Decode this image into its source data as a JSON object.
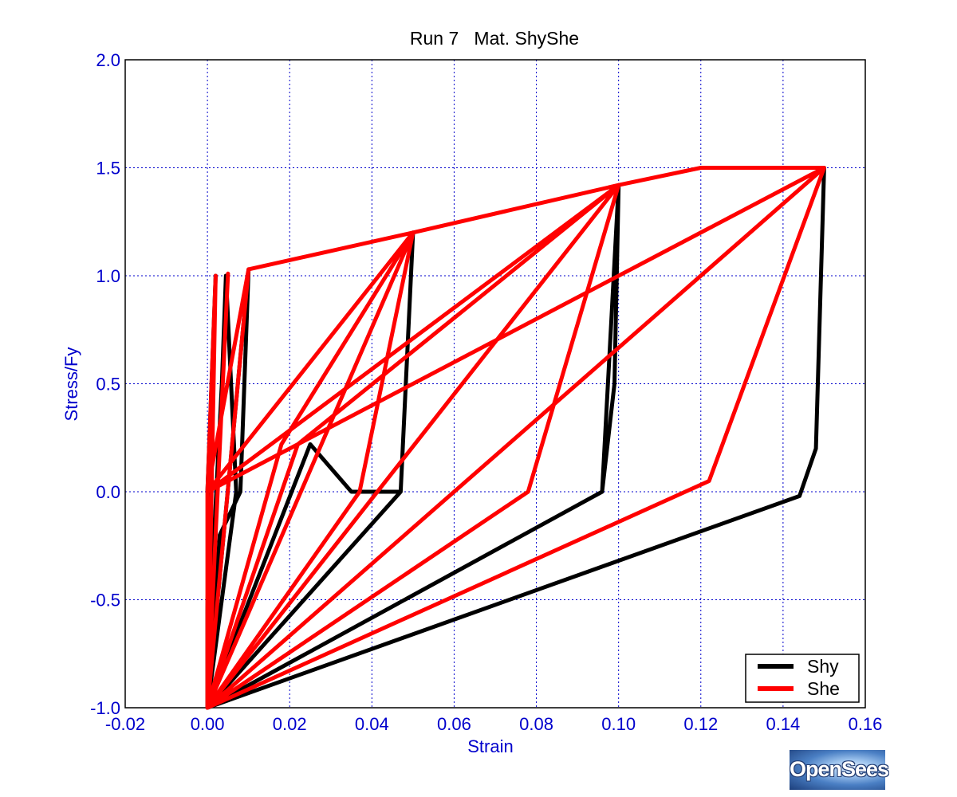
{
  "chart_data": {
    "type": "line",
    "title": "Run 7   Mat. ShyShe",
    "xlabel": "Strain",
    "ylabel": "Stress/Fy",
    "xlim": [
      -0.02,
      0.16
    ],
    "ylim": [
      -1.0,
      2.0
    ],
    "xticks": [
      "-0.02",
      "0.00",
      "0.02",
      "0.04",
      "0.06",
      "0.08",
      "0.10",
      "0.12",
      "0.14",
      "0.16"
    ],
    "yticks": [
      "-1.0",
      "-0.5",
      "0.0",
      "0.5",
      "1.0",
      "1.5",
      "2.0"
    ],
    "grid": true,
    "legend_position": "bottom-right",
    "series": [
      {
        "name": "Shy",
        "color": "#000000",
        "points": [
          [
            0.0,
            0.0
          ],
          [
            0.002,
            1.0
          ],
          [
            0.001,
            0.5
          ],
          [
            0.0,
            -0.55
          ],
          [
            0.0,
            -1.0
          ],
          [
            0.007,
            0.0
          ],
          [
            0.0045,
            1.0
          ],
          [
            0.0035,
            0.5
          ],
          [
            0.0,
            -0.8
          ],
          [
            0.0,
            -1.0
          ],
          [
            0.01,
            1.03
          ],
          [
            0.008,
            0.0
          ],
          [
            0.003,
            -0.2
          ],
          [
            0.0,
            -1.0
          ],
          [
            0.025,
            0.22
          ],
          [
            0.035,
            0.0
          ],
          [
            0.047,
            0.0
          ],
          [
            0.05,
            1.2
          ],
          [
            0.047,
            0.0
          ],
          [
            0.0,
            -1.0
          ],
          [
            0.096,
            0.0
          ],
          [
            0.099,
            0.5
          ],
          [
            0.1,
            1.42
          ],
          [
            0.096,
            0.0
          ],
          [
            0.0,
            -1.0
          ],
          [
            0.144,
            -0.02
          ],
          [
            0.148,
            0.2
          ],
          [
            0.15,
            1.5
          ],
          [
            0.148,
            0.2
          ],
          [
            0.144,
            -0.02
          ],
          [
            0.0,
            -1.0
          ]
        ]
      },
      {
        "name": "She",
        "color": "#ff0000",
        "points": [
          [
            0.0,
            0.0
          ],
          [
            0.002,
            1.0
          ],
          [
            0.0,
            -1.0
          ],
          [
            0.005,
            1.01
          ],
          [
            0.0,
            -1.0
          ],
          [
            0.01,
            1.03
          ],
          [
            0.0,
            -1.0
          ],
          [
            0.05,
            1.2
          ],
          [
            0.037,
            0.0
          ],
          [
            0.0,
            -1.0
          ],
          [
            0.1,
            1.42
          ],
          [
            0.078,
            0.0
          ],
          [
            0.0,
            -1.0
          ],
          [
            0.15,
            1.5
          ],
          [
            0.122,
            0.05
          ],
          [
            0.0,
            -1.0
          ],
          [
            0.0,
            0.0
          ],
          [
            0.01,
            1.03
          ],
          [
            0.05,
            1.2
          ],
          [
            0.1,
            1.42
          ],
          [
            0.12,
            1.5
          ],
          [
            0.15,
            1.5
          ],
          [
            0.0,
            0.0
          ],
          [
            0.05,
            1.2
          ],
          [
            0.0,
            0.0
          ],
          [
            0.1,
            1.42
          ],
          [
            0.0,
            0.0
          ],
          [
            0.0,
            -1.0
          ],
          [
            0.018,
            0.22
          ],
          [
            0.05,
            1.2
          ],
          [
            0.0,
            -1.0
          ],
          [
            0.022,
            0.22
          ],
          [
            0.1,
            1.42
          ]
        ]
      }
    ]
  },
  "logo": {
    "text": "OpenSees"
  }
}
